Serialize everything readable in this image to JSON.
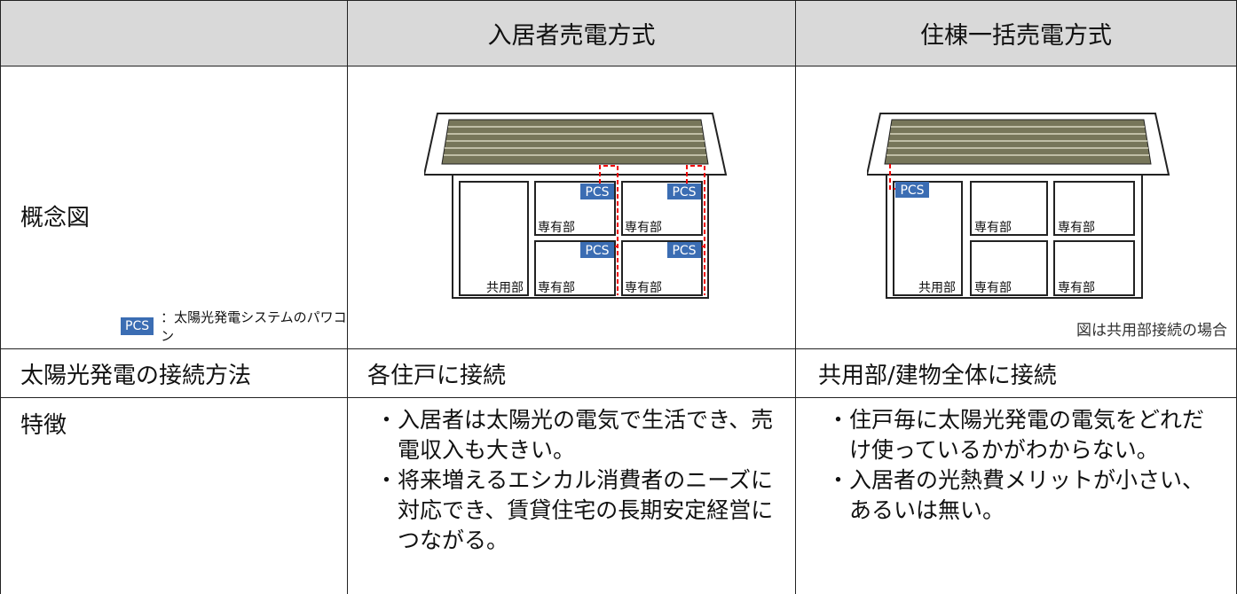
{
  "table": {
    "columns": [
      "入居者売電方式",
      "住棟一括売電方式"
    ],
    "rows": [
      {
        "label": "概念図",
        "legend": {
          "badge": "PCS",
          "text": "：太陽光発電システムのパワコン"
        },
        "diagrams": [
          {
            "pcs": "PCS",
            "unit": "専有部",
            "common": "共用部"
          },
          {
            "pcs": "PCS",
            "unit": "専有部",
            "common": "共用部",
            "note": "図は共用部接続の場合"
          }
        ]
      },
      {
        "label": "太陽光発電の接続方法",
        "cells": [
          "各住戸に接続",
          "共用部/建物全体に接続"
        ]
      },
      {
        "label": "特徴",
        "cells": [
          [
            "・入居者は太陽光の電気で生活でき、売電収入も大きい。",
            "・将来増えるエシカル消費者のニーズに対応でき、賃貸住宅の長期安定経営につながる。"
          ],
          [
            "・住戸毎に太陽光発電の電気をどれだけ使っているかがわからない。",
            "・入居者の光熱費メリットが小さい、あるいは無い。"
          ]
        ]
      }
    ]
  }
}
